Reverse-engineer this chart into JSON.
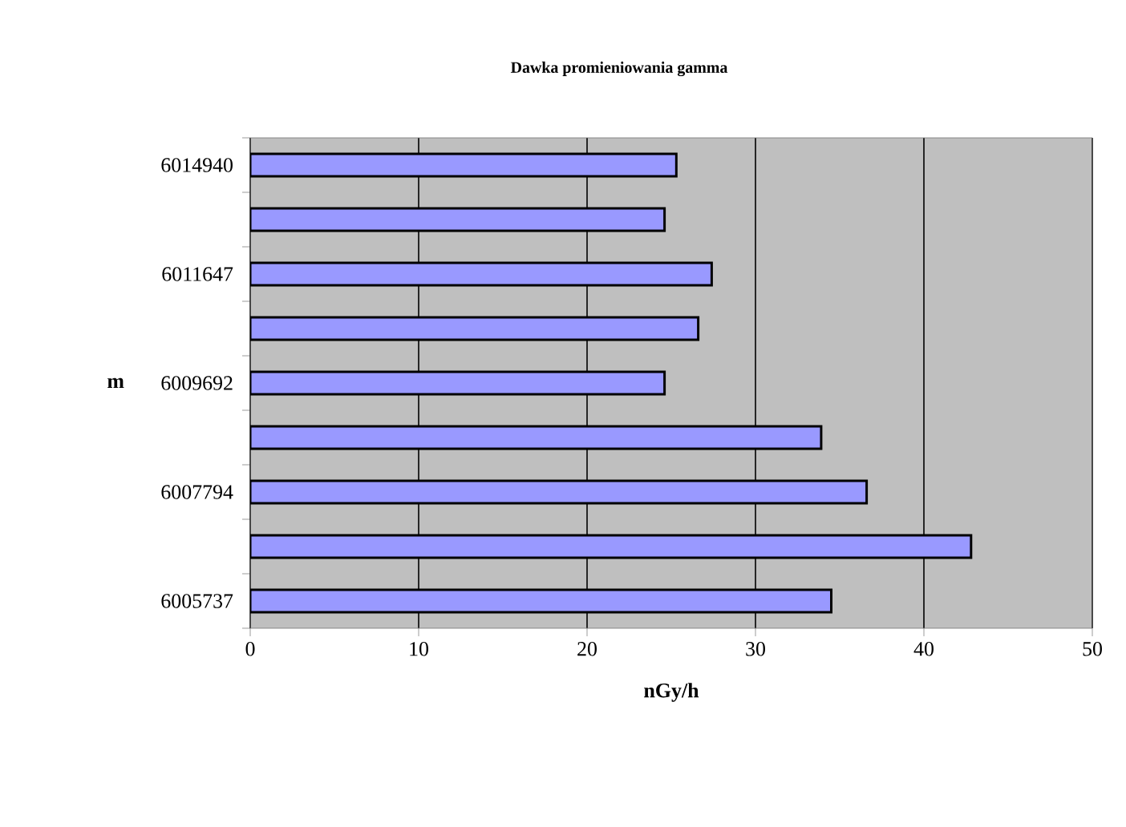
{
  "chart_data": {
    "type": "bar",
    "orientation": "horizontal",
    "title": "Dawka promieniowania gamma",
    "xlabel": "nGy/h",
    "ylabel": "m",
    "categories": [
      "6014940",
      null,
      "6011647",
      null,
      "6009692",
      null,
      "6007794",
      null,
      "6005737"
    ],
    "values": [
      25.3,
      24.6,
      27.4,
      26.6,
      24.6,
      33.9,
      36.6,
      42.8,
      34.5
    ],
    "color": "#9999ff",
    "xlim": [
      0,
      50
    ],
    "xticks": [
      0,
      10,
      20,
      30,
      40,
      50
    ],
    "grid": "x"
  }
}
